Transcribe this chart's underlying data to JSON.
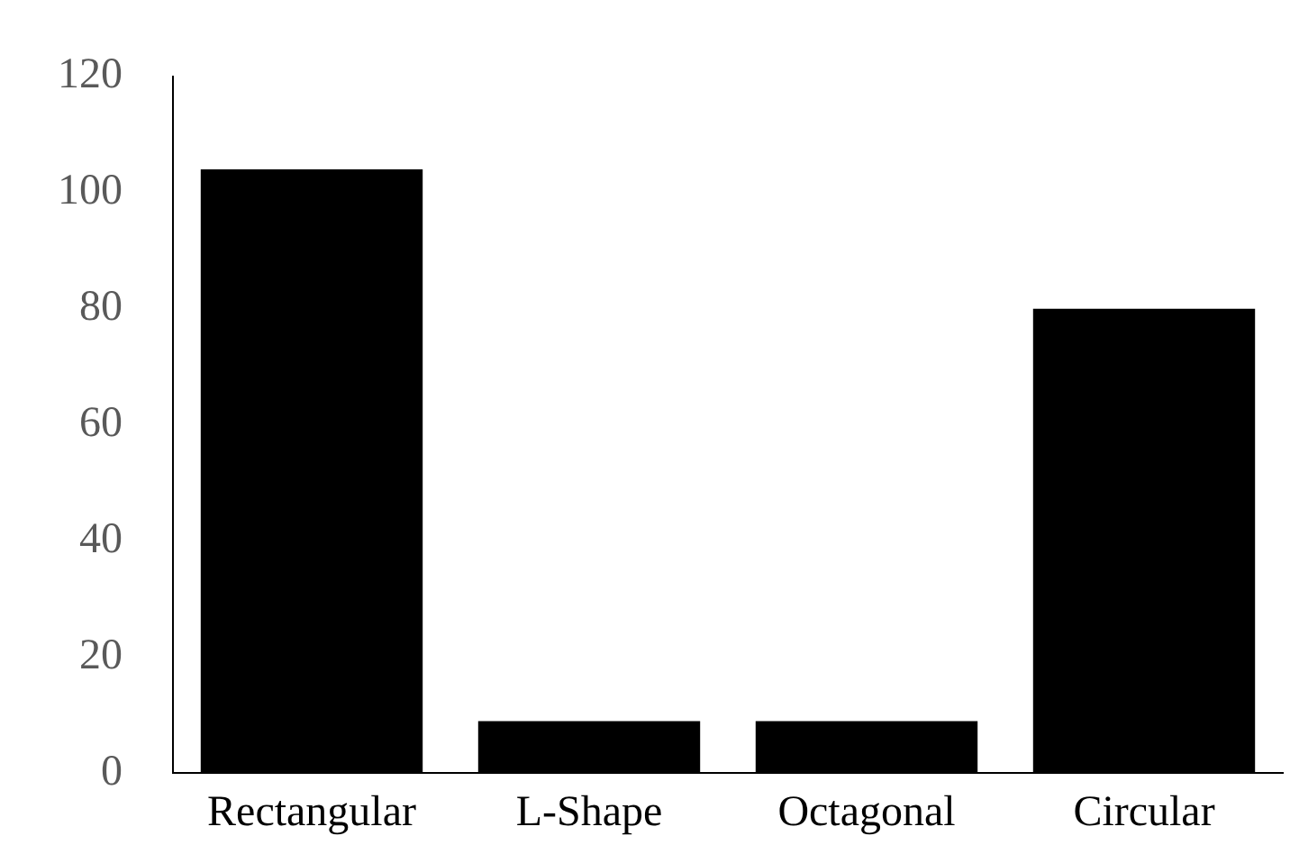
{
  "chart_data": {
    "type": "bar",
    "categories": [
      "Rectangular",
      "L-Shape",
      "Octagonal",
      "Circular"
    ],
    "values": [
      104,
      9,
      9,
      80
    ],
    "color": "#000000",
    "ylim": [
      0,
      120
    ],
    "yticks": [
      0,
      20,
      40,
      60,
      80,
      100,
      120
    ],
    "grid": false,
    "legend": false
  }
}
